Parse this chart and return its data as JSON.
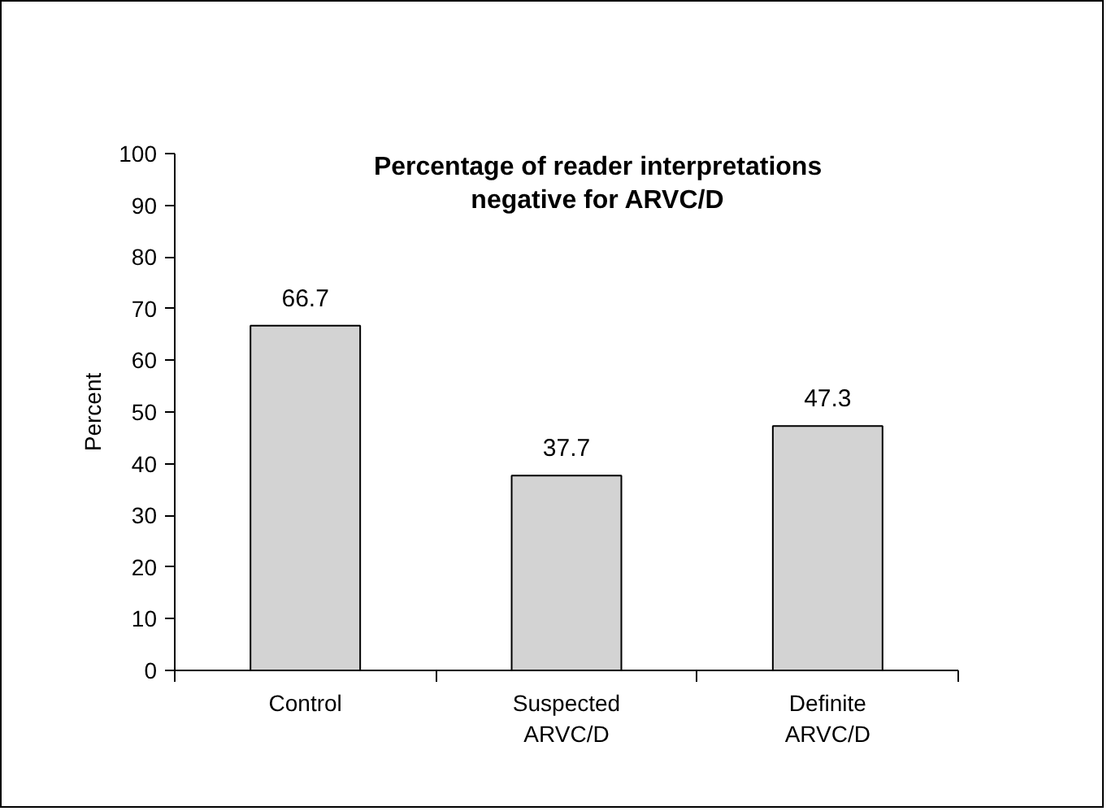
{
  "chart_data": {
    "type": "bar",
    "title": "Percentage of reader interpretations negative for ARVC/D",
    "ylabel": "Percent",
    "categories": [
      "Control",
      "Suspected ARVC/D",
      "Definite ARVC/D"
    ],
    "values": [
      66.7,
      37.7,
      47.3
    ],
    "color": "#d3d3d3",
    "data_labels": true,
    "ylim": [
      0,
      100
    ],
    "yticks": [
      0,
      10,
      20,
      30,
      40,
      50,
      60,
      70,
      80,
      90,
      100
    ],
    "grid": false
  }
}
